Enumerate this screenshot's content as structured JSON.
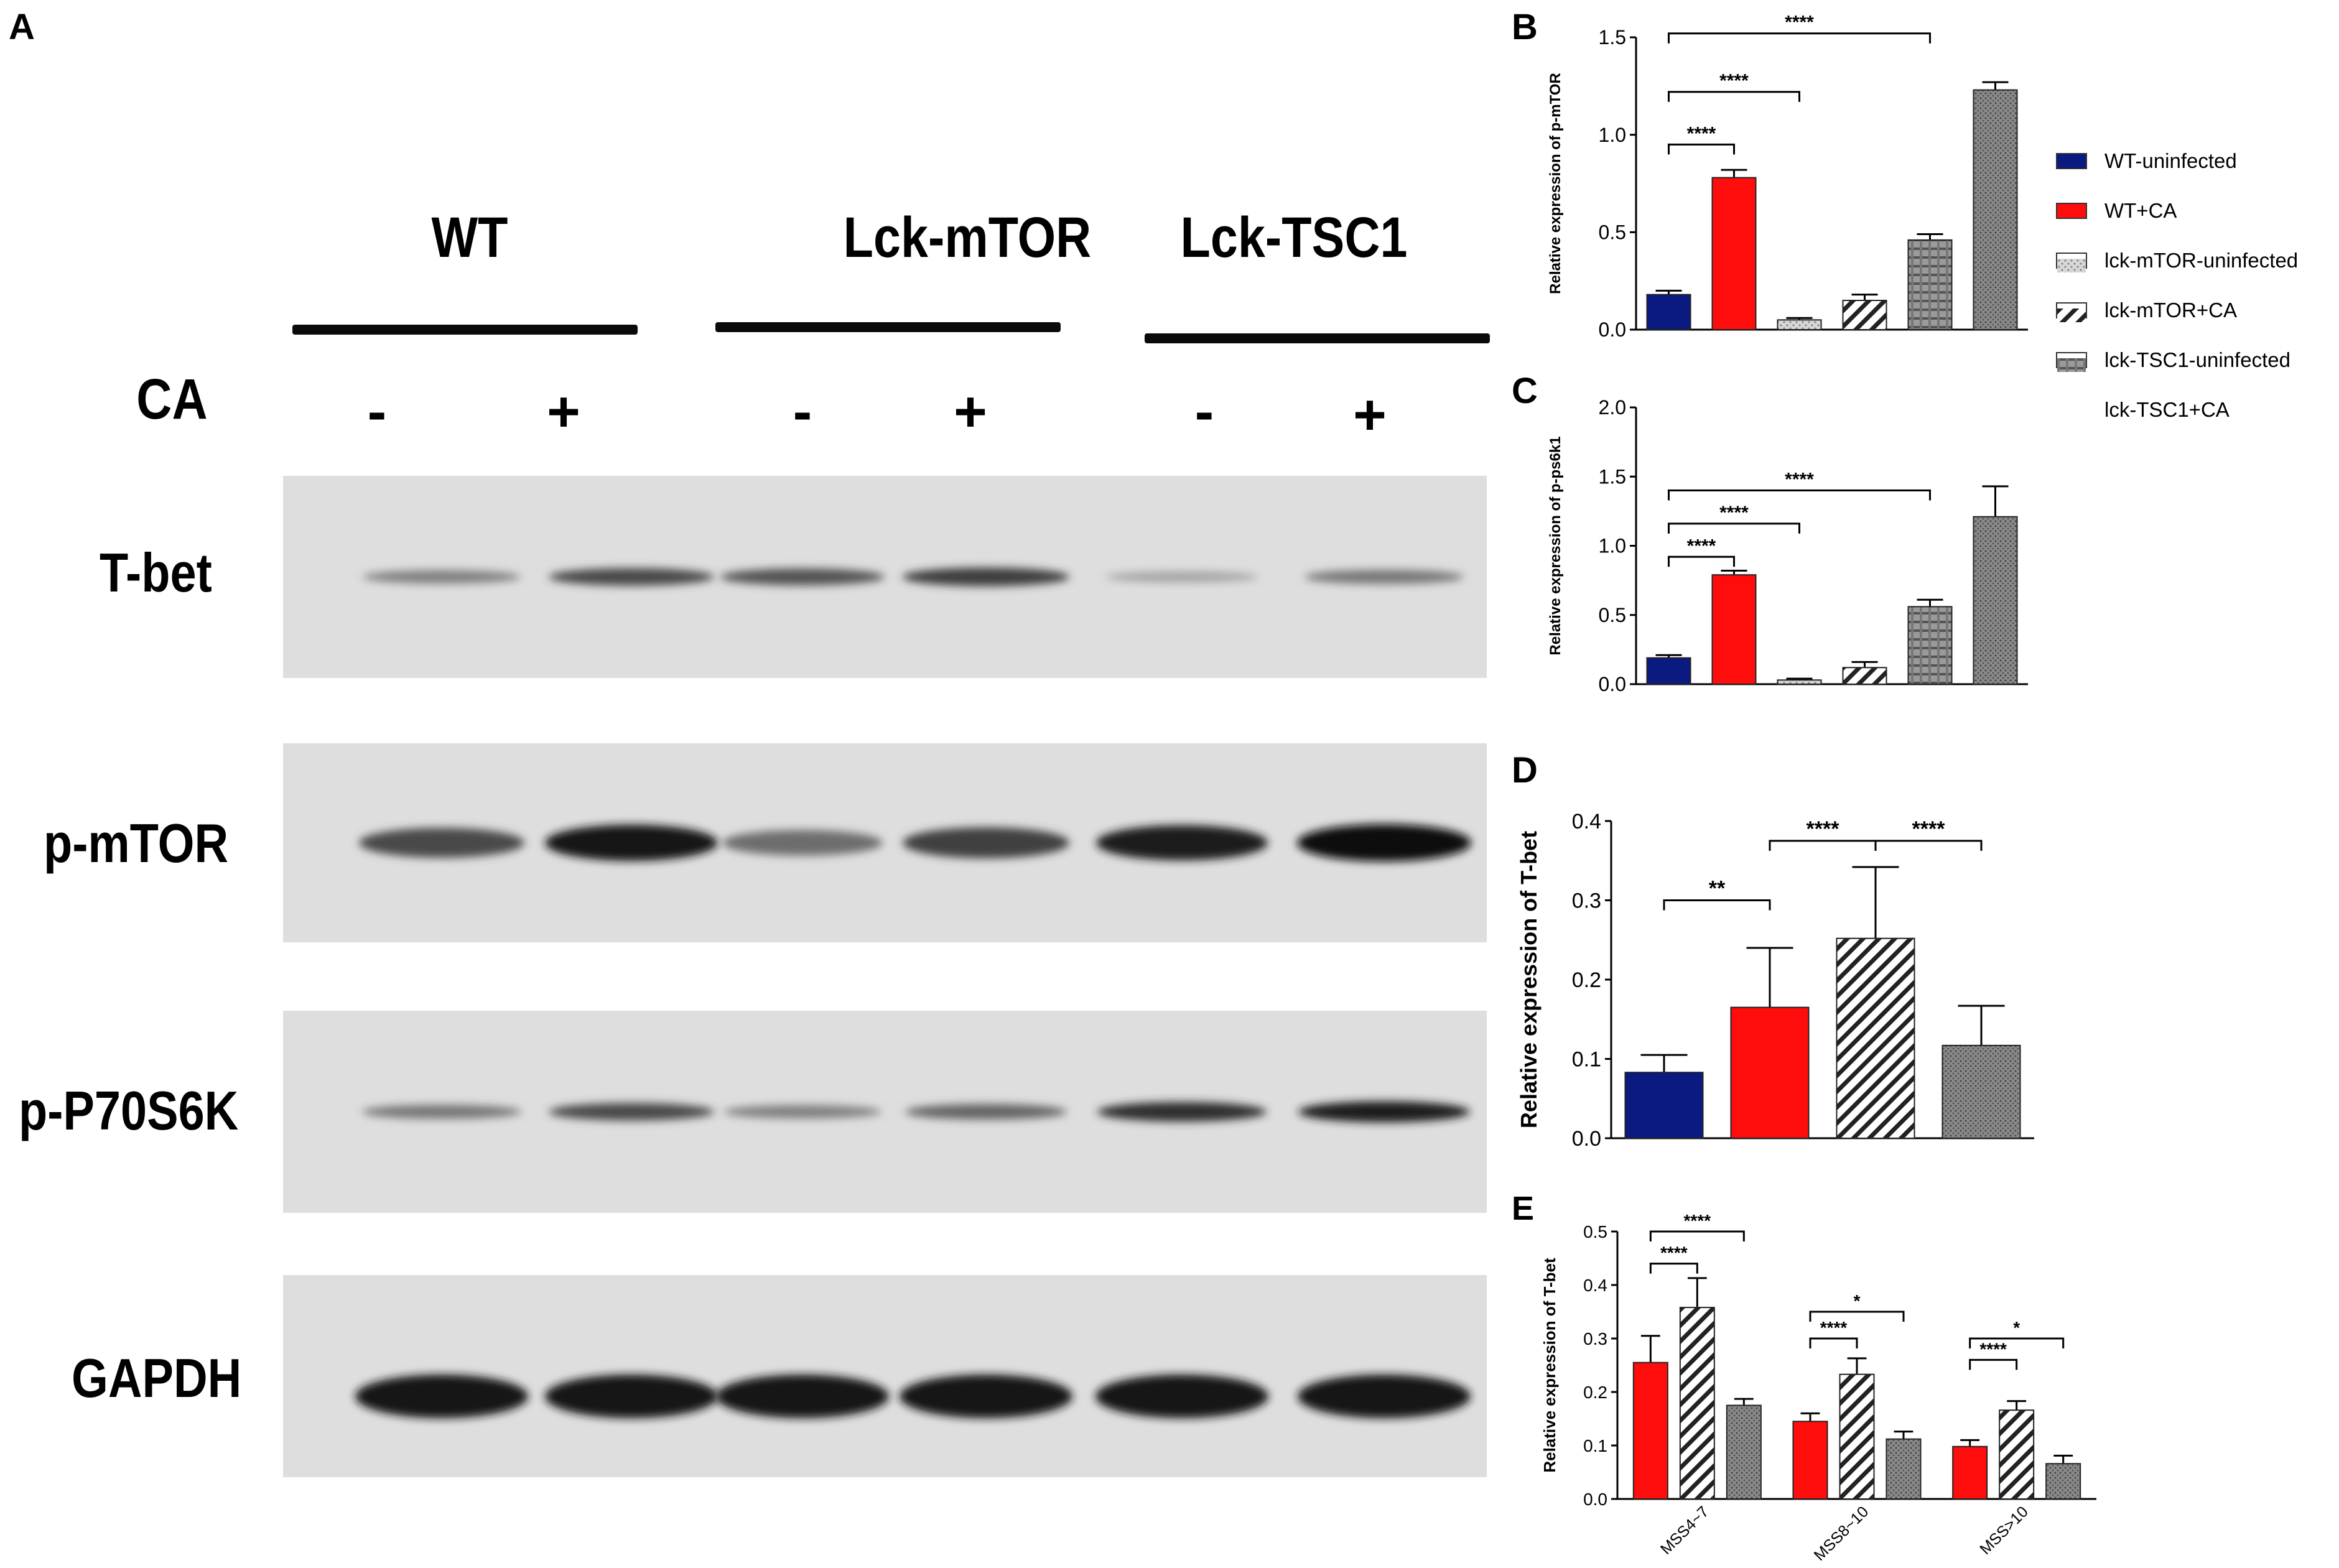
{
  "figure": {
    "panel_letters": [
      "A",
      "B",
      "C",
      "D",
      "E"
    ],
    "blot": {
      "groups": [
        "WT",
        "Lck-mTOR",
        "Lck-TSC1"
      ],
      "ca_label": "CA",
      "signs": [
        "-",
        "+",
        "-",
        "+",
        "-",
        "+"
      ],
      "rows": [
        "T-bet",
        "p-mTOR",
        "p-P70S6K",
        "GAPDH"
      ],
      "band_intensity": [
        [
          0.35,
          0.65,
          0.6,
          0.72,
          0.15,
          0.4
        ],
        [
          0.65,
          0.95,
          0.45,
          0.7,
          0.9,
          1.0
        ],
        [
          0.4,
          0.65,
          0.35,
          0.5,
          0.8,
          0.9
        ],
        [
          0.95,
          0.95,
          0.95,
          0.95,
          0.95,
          0.95
        ]
      ]
    },
    "legend": {
      "items": [
        "WT-uninfected",
        "WT+CA",
        "lck-mTOR-uninfected",
        "lck-mTOR+CA",
        "lck-TSC1-uninfected",
        "lck-TSC1+CA"
      ]
    }
  },
  "chart_data": [
    {
      "panel": "B",
      "type": "bar",
      "ylabel": "Relative expression of p-mTOR",
      "ylim": [
        0,
        1.5
      ],
      "yticks": [
        "0.0",
        "0.5",
        "1.0",
        "1.5"
      ],
      "categories": [
        "WT-uninfected",
        "WT+CA",
        "lck-mTOR-uninfected",
        "lck-mTOR+CA",
        "lck-TSC1-uninfected",
        "lck-TSC1+CA"
      ],
      "values": [
        0.18,
        0.78,
        0.05,
        0.15,
        0.46,
        1.23
      ],
      "errors": [
        0.02,
        0.04,
        0.01,
        0.03,
        0.03,
        0.04
      ],
      "significance": [
        {
          "from": 0,
          "to": 1,
          "label": "****"
        },
        {
          "from": 0,
          "to": 2,
          "label": "****"
        },
        {
          "from": 0,
          "to": 4,
          "label": "****"
        }
      ]
    },
    {
      "panel": "C",
      "type": "bar",
      "ylabel": "Relative expression of p-ps6k1",
      "ylim": [
        0,
        2.0
      ],
      "yticks": [
        "0.0",
        "0.5",
        "1.0",
        "1.5",
        "2.0"
      ],
      "categories": [
        "WT-uninfected",
        "WT+CA",
        "lck-mTOR-uninfected",
        "lck-mTOR+CA",
        "lck-TSC1-uninfected",
        "lck-TSC1+CA"
      ],
      "values": [
        0.19,
        0.79,
        0.03,
        0.12,
        0.56,
        1.21
      ],
      "errors": [
        0.02,
        0.03,
        0.01,
        0.04,
        0.05,
        0.22
      ],
      "significance": [
        {
          "from": 0,
          "to": 1,
          "label": "****"
        },
        {
          "from": 0,
          "to": 2,
          "label": "****"
        },
        {
          "from": 0,
          "to": 4,
          "label": "****"
        }
      ]
    },
    {
      "panel": "D",
      "type": "bar",
      "ylabel": "Relative expression of T-bet",
      "ylim": [
        0,
        0.4
      ],
      "yticks": [
        "0.0",
        "0.1",
        "0.2",
        "0.3",
        "0.4"
      ],
      "categories": [
        "WT-uninfected",
        "WT+CA",
        "lck-mTOR+CA",
        "lck-TSC1+CA"
      ],
      "values": [
        0.083,
        0.165,
        0.252,
        0.117
      ],
      "errors": [
        0.022,
        0.075,
        0.09,
        0.05
      ],
      "significance": [
        {
          "from": 0,
          "to": 1,
          "label": "**"
        },
        {
          "from": 1,
          "to": 2,
          "label": "****"
        },
        {
          "from": 2,
          "to": 3,
          "label": "****"
        },
        {
          "from": 1,
          "to": 3,
          "label": "*"
        }
      ]
    },
    {
      "panel": "E",
      "type": "bar",
      "ylabel": "Relative expression of T-bet",
      "ylim": [
        0,
        0.5
      ],
      "yticks": [
        "0.0",
        "0.1",
        "0.2",
        "0.3",
        "0.4",
        "0.5"
      ],
      "categories": [
        "MSS4~7",
        "MSS8~10",
        "MSS>10"
      ],
      "series": [
        {
          "values": [
            0.255,
            0.145,
            0.098
          ],
          "errors": [
            0.05,
            0.015,
            0.012
          ]
        },
        {
          "values": [
            0.358,
            0.233,
            0.166
          ],
          "errors": [
            0.055,
            0.03,
            0.017
          ]
        },
        {
          "values": [
            0.175,
            0.112,
            0.066
          ],
          "errors": [
            0.012,
            0.014,
            0.015
          ]
        }
      ],
      "significance": [
        {
          "group": 0,
          "from": 0,
          "to": 1,
          "label": "****"
        },
        {
          "group": 0,
          "from": 0,
          "to": 2,
          "label": "****"
        },
        {
          "group": 1,
          "from": 0,
          "to": 1,
          "label": "****"
        },
        {
          "group": 1,
          "from": 0,
          "to": 2,
          "label": "*"
        },
        {
          "group": 2,
          "from": 0,
          "to": 1,
          "label": "****"
        },
        {
          "group": 2,
          "from": 0,
          "to": 2,
          "label": "*"
        }
      ]
    }
  ]
}
